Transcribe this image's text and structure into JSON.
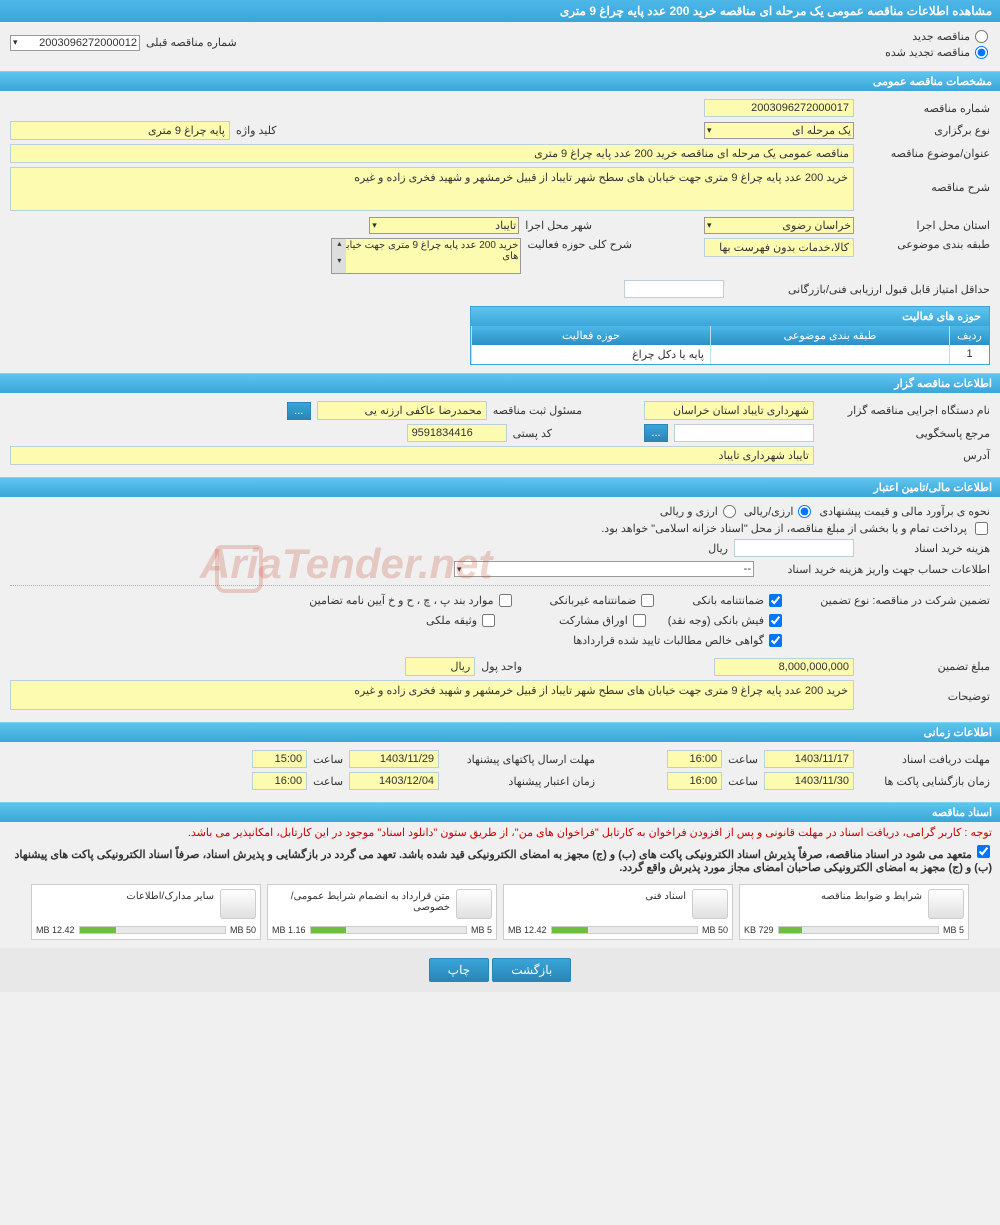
{
  "page": {
    "title": "مشاهده اطلاعات مناقصه عمومی یک مرحله ای مناقصه خرید 200 عدد پایه چراغ 9 متری"
  },
  "top": {
    "radio_new": "مناقصه جدید",
    "radio_renewed": "مناقصه تجدید شده",
    "prev_label": "شماره مناقصه قبلی",
    "prev_value": "2003096272000012"
  },
  "general": {
    "header": "مشخصات مناقصه عمومی",
    "tender_no_label": "شماره مناقصه",
    "tender_no": "2003096272000017",
    "type_label": "نوع برگزاری",
    "type_value": "یک مرحله ای",
    "keyword_label": "کلید واژه",
    "keyword_value": "پایه چراغ 9 متری",
    "subject_label": "عنوان/موضوع مناقصه",
    "subject_value": "مناقصه عمومی یک مرحله ای مناقصه خرید 200 عدد پایه چراغ 9 متری",
    "desc_label": "شرح مناقصه",
    "desc_value": "خرید 200 عدد پایه چراغ 9 متری جهت خیابان های سطح شهر تایباد از قبیل خرمشهر و شهید فخری زاده و غیره",
    "province_label": "استان محل اجرا",
    "province_value": "خراسان رضوی",
    "city_label": "شهر محل اجرا",
    "city_value": "تایباد",
    "cat_label": "طبقه بندی موضوعی",
    "cat_value": "کالا،خدمات بدون فهرست بها",
    "activity_desc_label": "شرح کلی حوزه فعالیت",
    "activity_desc_value": "خرید 200 عدد پایه چراغ 9 متری جهت خیابان های",
    "min_score_label": "حداقل امتیاز قابل قبول ارزیابی فنی/بازرگانی",
    "activity_table": {
      "title": "حوزه های فعالیت",
      "col_row": "ردیف",
      "col_cat": "طبقه بندی موضوعی",
      "col_act": "حوزه فعالیت",
      "row1_no": "1",
      "row1_cat": "",
      "row1_act": "پایه یا دکل چراغ"
    }
  },
  "org": {
    "header": "اطلاعات مناقصه گزار",
    "org_label": "نام دستگاه اجرایی مناقصه گزار",
    "org_value": "شهرداری تایباد استان خراسان",
    "reg_label": "مسئول ثبت مناقصه",
    "reg_value": "محمدرضا عاکفی ارزنه یی",
    "resp_label": "مرجع پاسخگویی",
    "postal_label": "کد پستی",
    "postal_value": "9591834416",
    "addr_label": "آدرس",
    "addr_value": "تایباد شهرداری تایباد"
  },
  "finance": {
    "header": "اطلاعات مالی/تامین اعتبار",
    "est_label": "نحوه ی برآورد مالی و قیمت پیشنهادی",
    "currency_opt": "ارزی/ریالی",
    "currency_opt2": "ارزی و ریالی",
    "pay_note": "پرداخت تمام و یا بخشی از مبلغ مناقصه، از محل \"اسناد خزانه اسلامی\" خواهد بود.",
    "doc_cost_label": "هزینه خرید اسناد",
    "doc_cost_unit": "ریال",
    "account_label": "اطلاعات حساب جهت واریز هزینه خرید اسناد",
    "account_value": "--",
    "guarantee_label": "تضمین شرکت در مناقصه:   نوع تضمین",
    "g_bank": "ضمانتنامه بانکی",
    "g_nonbank": "ضمانتنامه غیربانکی",
    "g_items": "موارد بند پ ، چ ، ح و خ آیین نامه تضامین",
    "g_cash": "فیش بانکی (وجه نقد)",
    "g_stock": "اوراق مشارکت",
    "g_property": "وثیقه ملکی",
    "g_cert": "گواهی خالص مطالبات تایید شده قراردادها",
    "amount_label": "مبلغ تضمین",
    "amount_value": "8,000,000,000",
    "unit_label": "واحد پول",
    "unit_value": "ریال",
    "notes_label": "توضیحات",
    "notes_value": "خرید 200 عدد پایه چراغ 9 متری جهت خیابان های سطح شهر تایباد از قبیل خرمشهر و شهید فخری زاده و غیره"
  },
  "time": {
    "header": "اطلاعات زمانی",
    "doc_deadline_label": "مهلت دریافت اسناد",
    "doc_deadline_date": "1403/11/17",
    "time_label": "ساعت",
    "doc_deadline_time": "16:00",
    "send_label": "مهلت ارسال پاکتهای پیشنهاد",
    "send_date": "1403/11/29",
    "send_time": "15:00",
    "open_label": "زمان بازگشایی پاکت ها",
    "open_date": "1403/11/30",
    "open_time": "16:00",
    "valid_label": "زمان اعتبار پیشنهاد",
    "valid_date": "1403/12/04",
    "valid_time": "16:00"
  },
  "docs": {
    "header": "اسناد مناقصه",
    "note1": "توجه : کاربر گرامی، دریافت اسناد در مهلت قانونی و پس از افزودن فراخوان به کارتابل \"فراخوان های من\"، از طریق ستون \"دانلود اسناد\" موجود در این کارتابل، امکانپذیر می باشد.",
    "note2": "متعهد می شود در اسناد مناقصه، صرفاً پذیرش اسناد الکترونیکی پاکت های (ب) و (ج) مجهز به امضای الکترونیکی قید شده باشد. تعهد می گردد در بازگشایی و پذیرش اسناد، صرفاً اسناد الکترونیکی پاکت های پیشنهاد (ب) و (ج) مجهز به امضای الکترونیکی صاحبان امضای مجاز مورد پذیرش واقع گردد.",
    "items": [
      {
        "label": "شرایط و ضوابط مناقصه",
        "size": "729 KB",
        "max": "5 MB",
        "fill": 15
      },
      {
        "label": "اسناد فنی",
        "size": "12.42 MB",
        "max": "50 MB",
        "fill": 25
      },
      {
        "label": "متن قرارداد به انضمام شرایط عمومی/خصوصی",
        "size": "1.16 MB",
        "max": "5 MB",
        "fill": 23
      },
      {
        "label": "سایر مدارک/اطلاعات",
        "size": "12.42 MB",
        "max": "50 MB",
        "fill": 25
      }
    ]
  },
  "footer": {
    "back": "بازگشت",
    "print": "چاپ"
  },
  "watermark": "AriaTender.net"
}
